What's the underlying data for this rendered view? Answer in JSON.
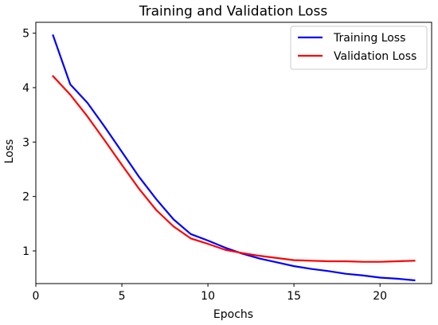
{
  "chart_data": {
    "type": "line",
    "title": "Training and Validation Loss",
    "xlabel": "Epochs",
    "ylabel": "Loss",
    "xlim": [
      0,
      23
    ],
    "ylim": [
      0.4,
      5.2
    ],
    "xticks": [
      0,
      5,
      10,
      15,
      20
    ],
    "yticks": [
      1,
      2,
      3,
      4,
      5
    ],
    "grid": false,
    "legend_position": "top-right",
    "x": [
      1,
      2,
      3,
      4,
      5,
      6,
      7,
      8,
      9,
      10,
      11,
      12,
      13,
      14,
      15,
      16,
      17,
      18,
      19,
      20,
      21,
      22
    ],
    "series": [
      {
        "name": "Training Loss",
        "color": "#0000ff",
        "values": [
          4.96,
          4.06,
          3.72,
          3.28,
          2.82,
          2.36,
          1.95,
          1.58,
          1.31,
          1.19,
          1.06,
          0.95,
          0.86,
          0.79,
          0.72,
          0.67,
          0.63,
          0.58,
          0.55,
          0.51,
          0.49,
          0.46
        ]
      },
      {
        "name": "Validation Loss",
        "color": "#ff0000",
        "values": [
          4.21,
          3.87,
          3.47,
          3.03,
          2.58,
          2.14,
          1.75,
          1.45,
          1.23,
          1.13,
          1.02,
          0.96,
          0.91,
          0.87,
          0.83,
          0.82,
          0.81,
          0.81,
          0.8,
          0.8,
          0.81,
          0.82
        ]
      }
    ]
  }
}
